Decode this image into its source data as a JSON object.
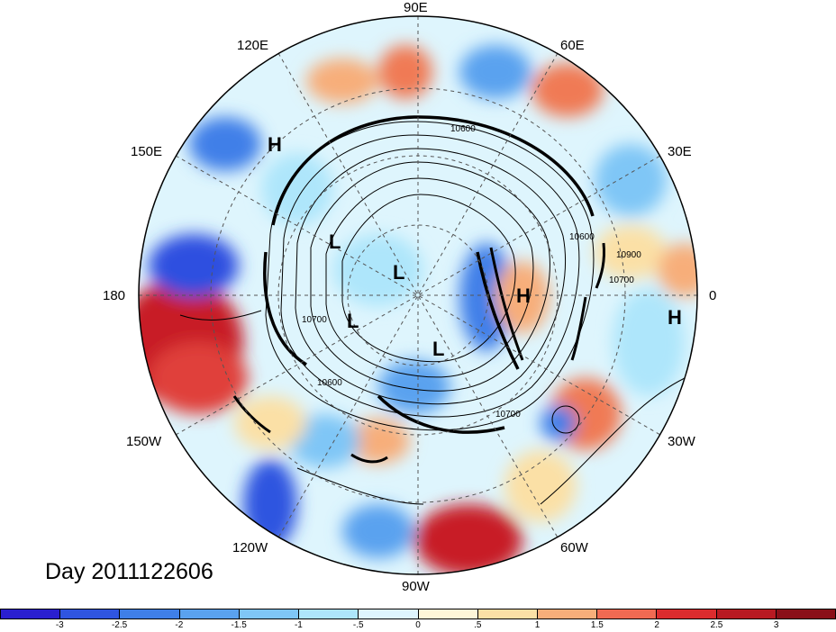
{
  "title": "Day 2011122606",
  "longitude_labels": {
    "lon_90E": "90E",
    "lon_60E": "60E",
    "lon_30E": "30E",
    "lon_0": "0",
    "lon_30W": "30W",
    "lon_60W": "60W",
    "lon_90W": "90W",
    "lon_120W": "120W",
    "lon_150W": "150W",
    "lon_180": "180",
    "lon_150E": "150E",
    "lon_120E": "120E"
  },
  "pressure_centers": {
    "h_pacific": "H",
    "h_europe": "H",
    "h_atlantic": "H",
    "l_siberia": "L",
    "l_arctic": "L",
    "l_alaska": "L",
    "l_canada": "L"
  },
  "contour_labels": {
    "c1": "10600",
    "c2": "10600",
    "c3": "10700",
    "c4": "10600",
    "c5": "10900",
    "c6": "10700",
    "c7": "10700"
  },
  "colorbar": {
    "ticks": [
      "-3",
      "-2.5",
      "-2",
      "-1.5",
      "-1",
      "-.5",
      "0",
      ".5",
      "1",
      "1.5",
      "2",
      "2.5",
      "3"
    ],
    "colors": [
      "#2a1fd0",
      "#2f55e0",
      "#3f7fe8",
      "#5aa2ef",
      "#7fc6f6",
      "#aee6fb",
      "#def5fd",
      "#fdf6d8",
      "#fbe0a6",
      "#f7ae7a",
      "#f06a52",
      "#dc2c2e",
      "#b81a22",
      "#8a0f18"
    ]
  }
}
